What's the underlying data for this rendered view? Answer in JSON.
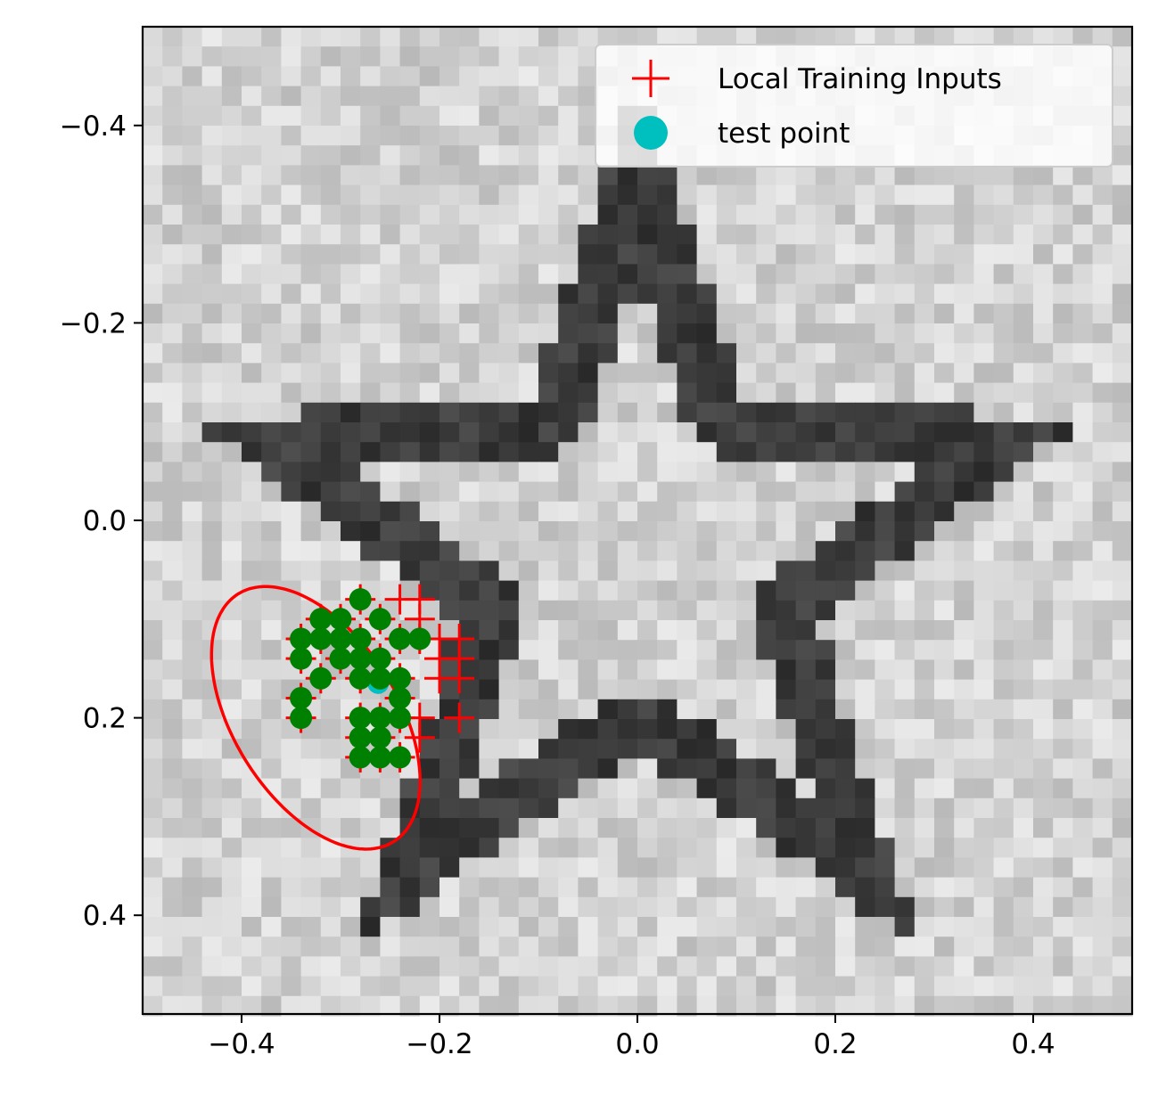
{
  "chart_data": {
    "type": "scatter",
    "title": "",
    "xlabel": "",
    "ylabel": "",
    "xlim": [
      -0.5,
      0.5
    ],
    "ylim": [
      0.5,
      -0.5
    ],
    "y_axis_inverted": true,
    "grid": false,
    "xticks": [
      -0.4,
      -0.2,
      0.0,
      0.2,
      0.4
    ],
    "yticks": [
      -0.4,
      -0.2,
      0.0,
      0.2,
      0.4
    ],
    "xtick_labels": [
      "−0.4",
      "−0.2",
      "0.0",
      "0.2",
      "0.4"
    ],
    "ytick_labels": [
      "−0.4",
      "−0.2",
      "0.0",
      "0.2",
      "0.4"
    ],
    "legend_position": "top-right",
    "background_image": {
      "description": "grayscale pixelated noisy image of a dark five-pointed star outline on a light background",
      "grid_size": 50,
      "colormap": "gray"
    },
    "colors": {
      "local_training_inputs": "#ff0000",
      "test_point": "#00bfbf",
      "neighbors": "#008000",
      "ellipse": "#ff0000"
    },
    "series": [
      {
        "name": "Local Training Inputs",
        "marker": "plus",
        "color": "#ff0000",
        "points": [
          [
            -0.34,
            0.12
          ],
          [
            -0.34,
            0.14
          ],
          [
            -0.34,
            0.18
          ],
          [
            -0.34,
            0.2
          ],
          [
            -0.32,
            0.1
          ],
          [
            -0.32,
            0.12
          ],
          [
            -0.32,
            0.16
          ],
          [
            -0.3,
            0.1
          ],
          [
            -0.3,
            0.12
          ],
          [
            -0.3,
            0.14
          ],
          [
            -0.28,
            0.08
          ],
          [
            -0.28,
            0.12
          ],
          [
            -0.28,
            0.14
          ],
          [
            -0.28,
            0.16
          ],
          [
            -0.28,
            0.2
          ],
          [
            -0.28,
            0.22
          ],
          [
            -0.28,
            0.24
          ],
          [
            -0.26,
            0.1
          ],
          [
            -0.26,
            0.14
          ],
          [
            -0.26,
            0.16
          ],
          [
            -0.26,
            0.2
          ],
          [
            -0.26,
            0.22
          ],
          [
            -0.26,
            0.24
          ],
          [
            -0.24,
            0.08
          ],
          [
            -0.24,
            0.12
          ],
          [
            -0.24,
            0.16
          ],
          [
            -0.24,
            0.18
          ],
          [
            -0.24,
            0.2
          ],
          [
            -0.24,
            0.24
          ],
          [
            -0.22,
            0.08
          ],
          [
            -0.22,
            0.1
          ],
          [
            -0.22,
            0.12
          ],
          [
            -0.22,
            0.2
          ],
          [
            -0.22,
            0.22
          ],
          [
            -0.2,
            0.12
          ],
          [
            -0.2,
            0.14
          ],
          [
            -0.2,
            0.16
          ],
          [
            -0.18,
            0.12
          ],
          [
            -0.18,
            0.14
          ],
          [
            -0.18,
            0.16
          ],
          [
            -0.18,
            0.2
          ]
        ]
      },
      {
        "name": "test point",
        "marker": "circle",
        "color": "#00bfbf",
        "points": [
          [
            -0.262,
            0.165
          ]
        ]
      },
      {
        "marker": "circle",
        "color": "#008000",
        "points": [
          [
            -0.34,
            0.12
          ],
          [
            -0.34,
            0.14
          ],
          [
            -0.34,
            0.18
          ],
          [
            -0.34,
            0.2
          ],
          [
            -0.32,
            0.1
          ],
          [
            -0.32,
            0.12
          ],
          [
            -0.32,
            0.16
          ],
          [
            -0.3,
            0.1
          ],
          [
            -0.3,
            0.12
          ],
          [
            -0.3,
            0.14
          ],
          [
            -0.28,
            0.08
          ],
          [
            -0.28,
            0.12
          ],
          [
            -0.28,
            0.14
          ],
          [
            -0.28,
            0.16
          ],
          [
            -0.28,
            0.2
          ],
          [
            -0.28,
            0.22
          ],
          [
            -0.28,
            0.24
          ],
          [
            -0.26,
            0.1
          ],
          [
            -0.26,
            0.14
          ],
          [
            -0.26,
            0.16
          ],
          [
            -0.26,
            0.2
          ],
          [
            -0.26,
            0.22
          ],
          [
            -0.26,
            0.24
          ],
          [
            -0.24,
            0.12
          ],
          [
            -0.24,
            0.16
          ],
          [
            -0.24,
            0.18
          ],
          [
            -0.24,
            0.2
          ],
          [
            -0.24,
            0.24
          ],
          [
            -0.22,
            0.12
          ]
        ]
      }
    ],
    "ellipse": {
      "color": "#ff0000",
      "center": [
        -0.325,
        0.2
      ],
      "semi_axes": [
        0.148,
        0.083
      ],
      "rotation_deg": 58
    }
  }
}
